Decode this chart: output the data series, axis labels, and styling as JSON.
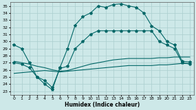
{
  "xlabel": "Humidex (Indice chaleur)",
  "xlim": [
    -0.5,
    23.5
  ],
  "ylim": [
    22.5,
    35.5
  ],
  "xticks": [
    0,
    1,
    2,
    3,
    4,
    5,
    6,
    7,
    8,
    9,
    10,
    11,
    12,
    13,
    14,
    15,
    16,
    17,
    18,
    19,
    20,
    21,
    22,
    23
  ],
  "yticks": [
    23,
    24,
    25,
    26,
    27,
    28,
    29,
    30,
    31,
    32,
    33,
    34,
    35
  ],
  "bg_color": "#cde8e8",
  "grid_color": "#aacece",
  "line_color": "#006666",
  "series": [
    [
      29.5,
      29.0,
      27.0,
      25.0,
      24.0,
      23.2,
      26.3,
      29.0,
      32.3,
      33.5,
      34.0,
      35.0,
      34.8,
      35.2,
      35.3,
      35.0,
      34.8,
      34.0,
      32.2,
      31.5,
      30.0,
      29.5,
      27.2,
      27.1
    ],
    [
      27.0,
      26.8,
      26.3,
      25.0,
      24.5,
      23.5,
      26.2,
      26.5,
      29.0,
      30.0,
      31.0,
      31.5,
      31.5,
      31.5,
      31.5,
      31.5,
      31.5,
      31.5,
      31.5,
      30.0,
      29.5,
      29.0,
      27.0,
      26.8
    ],
    [
      27.2,
      27.0,
      26.8,
      26.5,
      26.3,
      26.0,
      25.8,
      25.9,
      26.2,
      26.5,
      26.8,
      27.0,
      27.2,
      27.4,
      27.5,
      27.6,
      27.6,
      27.6,
      27.6,
      27.7,
      27.7,
      27.8,
      27.8,
      27.8
    ],
    [
      25.5,
      25.6,
      25.7,
      25.8,
      25.9,
      25.8,
      25.7,
      25.8,
      25.9,
      26.0,
      26.1,
      26.2,
      26.3,
      26.4,
      26.5,
      26.6,
      26.6,
      26.6,
      26.6,
      26.7,
      26.7,
      26.8,
      26.9,
      26.9
    ]
  ],
  "marker": "*",
  "markersize": 3,
  "linewidth": 0.8
}
